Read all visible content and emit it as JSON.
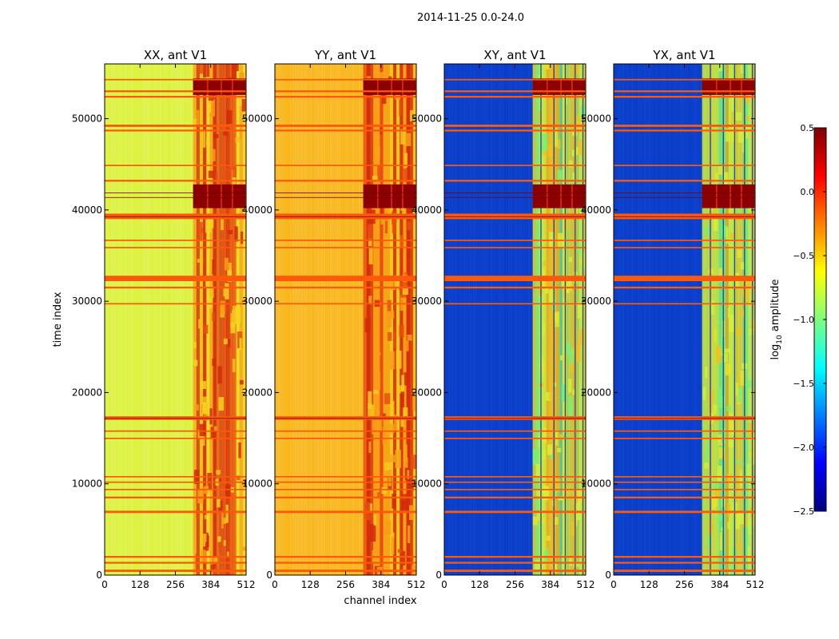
{
  "chart_data": {
    "type": "heatmap",
    "suptitle": "2014-11-25 0.0-24.0",
    "xlabel": "channel index",
    "ylabel": "time index",
    "xlim": [
      0,
      512
    ],
    "ylim": [
      0,
      56000
    ],
    "xticks": [
      0,
      128,
      256,
      384,
      512
    ],
    "yticks": [
      0,
      10000,
      20000,
      30000,
      40000,
      50000
    ],
    "colorbar": {
      "label": "log10 amplitude",
      "label_main": "log",
      "label_sub": "10",
      "label_rest": " amplitude",
      "range": [
        -2.5,
        0.5
      ],
      "ticks": [
        0.5,
        0.0,
        -0.5,
        -1.0,
        -1.5,
        -2.0,
        -2.5
      ],
      "tick_labels": [
        "0.5",
        "0.0",
        "−0.5",
        "−1.0",
        "−1.5",
        "−2.0",
        "−2.5"
      ],
      "colors": [
        "#00007f",
        "#0000ff",
        "#007fff",
        "#00ffff",
        "#7fff7f",
        "#ffff00",
        "#ff7f00",
        "#ff0000",
        "#7f0000"
      ]
    },
    "panels": [
      {
        "title": "XX, ant V1",
        "base_color": "#dcf23a",
        "band_colors": [
          "#f3bf1c",
          "#e94d10",
          "#fa9b16",
          "#d32a0a",
          "#f6d51f"
        ],
        "dark_blocks": [
          [
            40200,
            42800
          ],
          [
            52600,
            54400
          ]
        ]
      },
      {
        "title": "YY, ant V1",
        "base_color": "#f8b515",
        "band_colors": [
          "#f7c91d",
          "#e94d10",
          "#fa9b16",
          "#d32a0a",
          "#f5a516"
        ],
        "dark_blocks": [
          [
            40200,
            42800
          ],
          [
            52600,
            54400
          ]
        ]
      },
      {
        "title": "XY, ant V1",
        "base_color": "#0a3cc8",
        "band_colors": [
          "#d7ef38",
          "#ebe12c",
          "#7aef74",
          "#f3bf1c",
          "#c8ef3e"
        ],
        "dark_blocks": [
          [
            40200,
            42800
          ],
          [
            52600,
            54400
          ]
        ]
      },
      {
        "title": "YX, ant V1",
        "base_color": "#0a3cc8",
        "band_colors": [
          "#d7ef38",
          "#ebe12c",
          "#7aef74",
          "#f3bf1c",
          "#c8ef3e"
        ],
        "dark_blocks": [
          [
            40200,
            42800
          ],
          [
            52600,
            54400
          ]
        ]
      }
    ],
    "rfi_bands": [
      [
        350,
        600
      ],
      [
        1250,
        1450
      ],
      [
        1900,
        2100
      ],
      [
        6800,
        7050
      ],
      [
        8400,
        8600
      ],
      [
        9300,
        9450
      ],
      [
        10100,
        10250
      ],
      [
        10700,
        10850
      ],
      [
        14900,
        15050
      ],
      [
        15700,
        15850
      ],
      [
        17000,
        17400
      ],
      [
        29650,
        29800
      ],
      [
        31400,
        31600
      ],
      [
        32200,
        32800
      ],
      [
        35800,
        35950
      ],
      [
        36600,
        36750
      ],
      [
        39000,
        39600
      ],
      [
        43100,
        43300
      ],
      [
        44800,
        44950
      ],
      [
        48600,
        48800
      ],
      [
        49100,
        49350
      ],
      [
        52300,
        52500
      ],
      [
        52900,
        53100
      ],
      [
        54200,
        54350
      ]
    ],
    "rfi_color": "#fc5a0a"
  }
}
